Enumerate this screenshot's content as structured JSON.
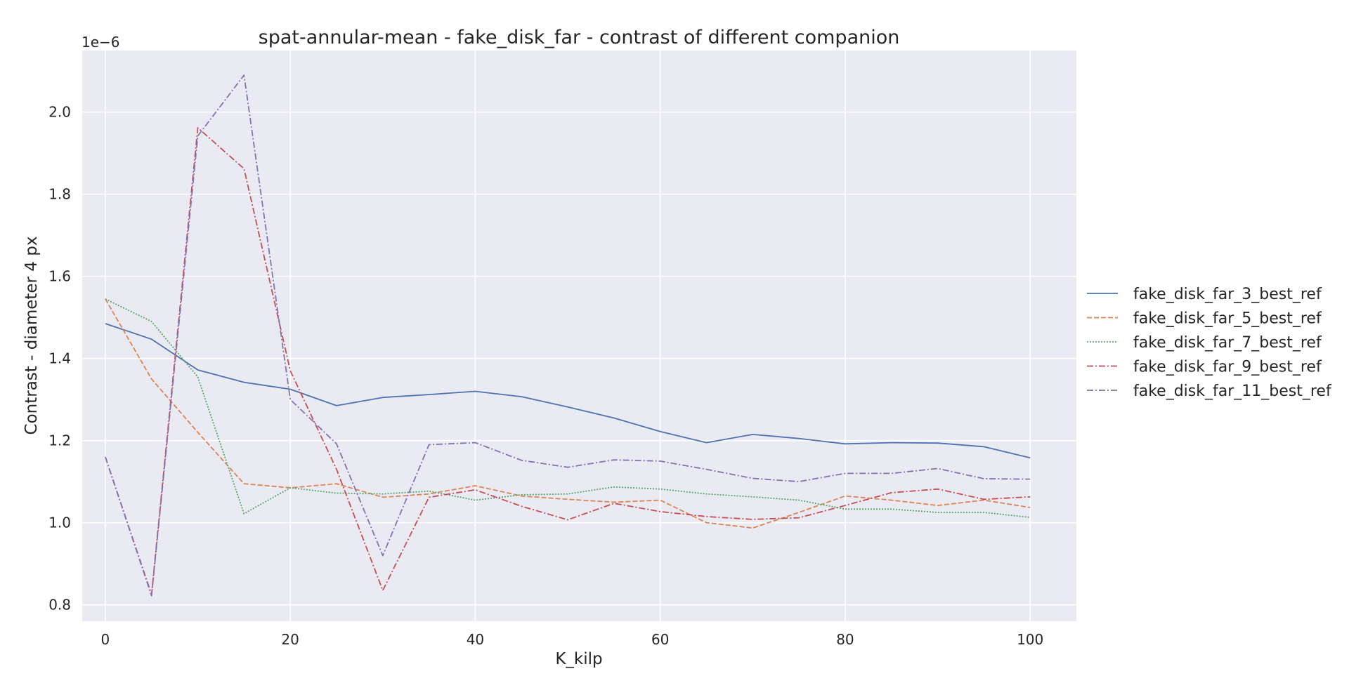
{
  "chart_data": {
    "type": "line",
    "title": "spat-annular-mean - fake_disk_far - contrast of different companion",
    "xlabel": "K_kilp",
    "ylabel": "Contrast - diameter 4 px",
    "y_offset_label": "1e−6",
    "x": [
      0,
      5,
      10,
      15,
      20,
      25,
      30,
      35,
      40,
      45,
      50,
      55,
      60,
      65,
      70,
      75,
      80,
      85,
      90,
      95,
      100
    ],
    "xlim": [
      -2.5,
      105
    ],
    "ylim": [
      0.76,
      2.15
    ],
    "xticks": [
      0,
      20,
      40,
      60,
      80,
      100
    ],
    "xtick_labels": [
      "0",
      "20",
      "40",
      "60",
      "80",
      "100"
    ],
    "yticks": [
      0.8,
      1.0,
      1.2,
      1.4,
      1.6,
      1.8,
      2.0
    ],
    "ytick_labels": [
      "0.8",
      "1.0",
      "1.2",
      "1.4",
      "1.6",
      "1.8",
      "2.0"
    ],
    "grid": true,
    "legend_position": "right",
    "background": "#eaeaf2",
    "series": [
      {
        "name": "fake_disk_far_3_best_ref",
        "color": "#4c72b0",
        "dash": "solid",
        "values": [
          1.485,
          1.447,
          1.372,
          1.342,
          1.325,
          1.285,
          1.305,
          1.312,
          1.32,
          1.307,
          1.282,
          1.255,
          1.222,
          1.195,
          1.215,
          1.205,
          1.192,
          1.195,
          1.194,
          1.185,
          1.158
        ]
      },
      {
        "name": "fake_disk_far_5_best_ref",
        "color": "#dd8452",
        "dash": "dashed",
        "values": [
          1.545,
          1.35,
          1.22,
          1.095,
          1.085,
          1.095,
          1.062,
          1.07,
          1.09,
          1.065,
          1.057,
          1.05,
          1.055,
          1.0,
          0.987,
          1.025,
          1.065,
          1.055,
          1.042,
          1.055,
          1.037
        ]
      },
      {
        "name": "fake_disk_far_7_best_ref",
        "color": "#55a868",
        "dash": "dotted",
        "values": [
          1.545,
          1.49,
          1.355,
          1.022,
          1.085,
          1.072,
          1.07,
          1.077,
          1.055,
          1.068,
          1.07,
          1.087,
          1.082,
          1.07,
          1.063,
          1.055,
          1.033,
          1.033,
          1.025,
          1.025,
          1.013
        ]
      },
      {
        "name": "fake_disk_far_9_best_ref",
        "color": "#c44e52",
        "dash": "dashdot",
        "values": [
          1.16,
          0.825,
          1.962,
          1.862,
          1.37,
          1.13,
          0.835,
          1.062,
          1.08,
          1.04,
          1.007,
          1.047,
          1.027,
          1.015,
          1.008,
          1.012,
          1.042,
          1.073,
          1.082,
          1.057,
          1.063
        ]
      },
      {
        "name": "fake_disk_far_11_best_ref",
        "color": "#8172b3",
        "dash": "dashdot",
        "values": [
          1.16,
          0.822,
          1.942,
          2.09,
          1.3,
          1.192,
          0.92,
          1.19,
          1.195,
          1.152,
          1.135,
          1.153,
          1.15,
          1.13,
          1.108,
          1.1,
          1.12,
          1.12,
          1.132,
          1.107,
          1.106
        ]
      }
    ]
  }
}
